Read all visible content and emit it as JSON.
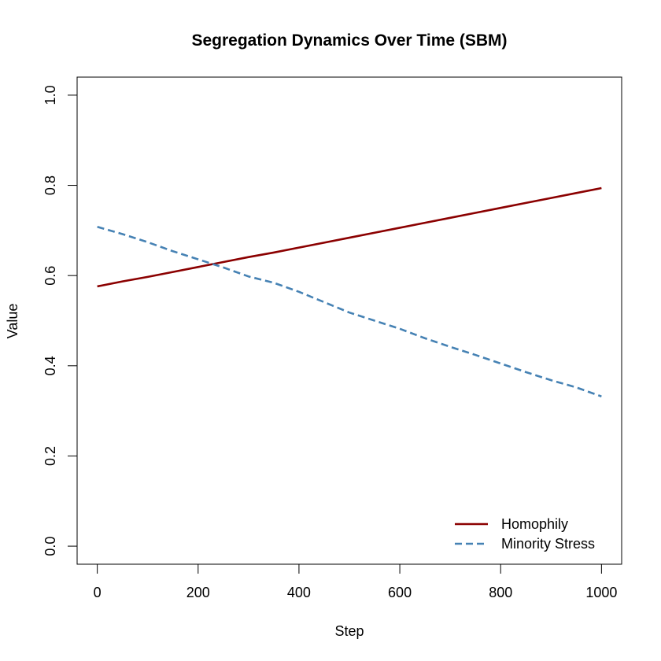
{
  "chart_data": {
    "type": "line",
    "title": "Segregation Dynamics Over Time (SBM)",
    "xlabel": "Step",
    "ylabel": "Value",
    "xlim": [
      -40,
      1040
    ],
    "ylim": [
      -0.04,
      1.04
    ],
    "xticks": [
      0,
      200,
      400,
      600,
      800,
      1000
    ],
    "yticks": [
      0.0,
      0.2,
      0.4,
      0.6,
      0.8,
      1.0
    ],
    "xtick_labels": [
      "0",
      "200",
      "400",
      "600",
      "800",
      "1000"
    ],
    "ytick_labels": [
      "0.0",
      "0.2",
      "0.4",
      "0.6",
      "0.8",
      "1.0"
    ],
    "grid": false,
    "legend_position": "bottom-right",
    "x": [
      0,
      50,
      100,
      150,
      200,
      250,
      300,
      350,
      400,
      450,
      500,
      550,
      600,
      650,
      700,
      750,
      800,
      850,
      900,
      950,
      1000
    ],
    "series": [
      {
        "name": "Homophily",
        "color": "#8b0000",
        "line_style": "solid",
        "values": [
          0.576,
          0.587,
          0.597,
          0.608,
          0.619,
          0.63,
          0.641,
          0.651,
          0.662,
          0.673,
          0.684,
          0.695,
          0.706,
          0.717,
          0.728,
          0.739,
          0.75,
          0.761,
          0.772,
          0.783,
          0.794
        ]
      },
      {
        "name": "Minority Stress",
        "color": "#4682b4",
        "line_style": "dashed",
        "values": [
          0.708,
          0.692,
          0.674,
          0.654,
          0.636,
          0.618,
          0.598,
          0.584,
          0.564,
          0.541,
          0.518,
          0.5,
          0.482,
          0.461,
          0.442,
          0.424,
          0.405,
          0.386,
          0.368,
          0.352,
          0.332
        ]
      }
    ]
  }
}
